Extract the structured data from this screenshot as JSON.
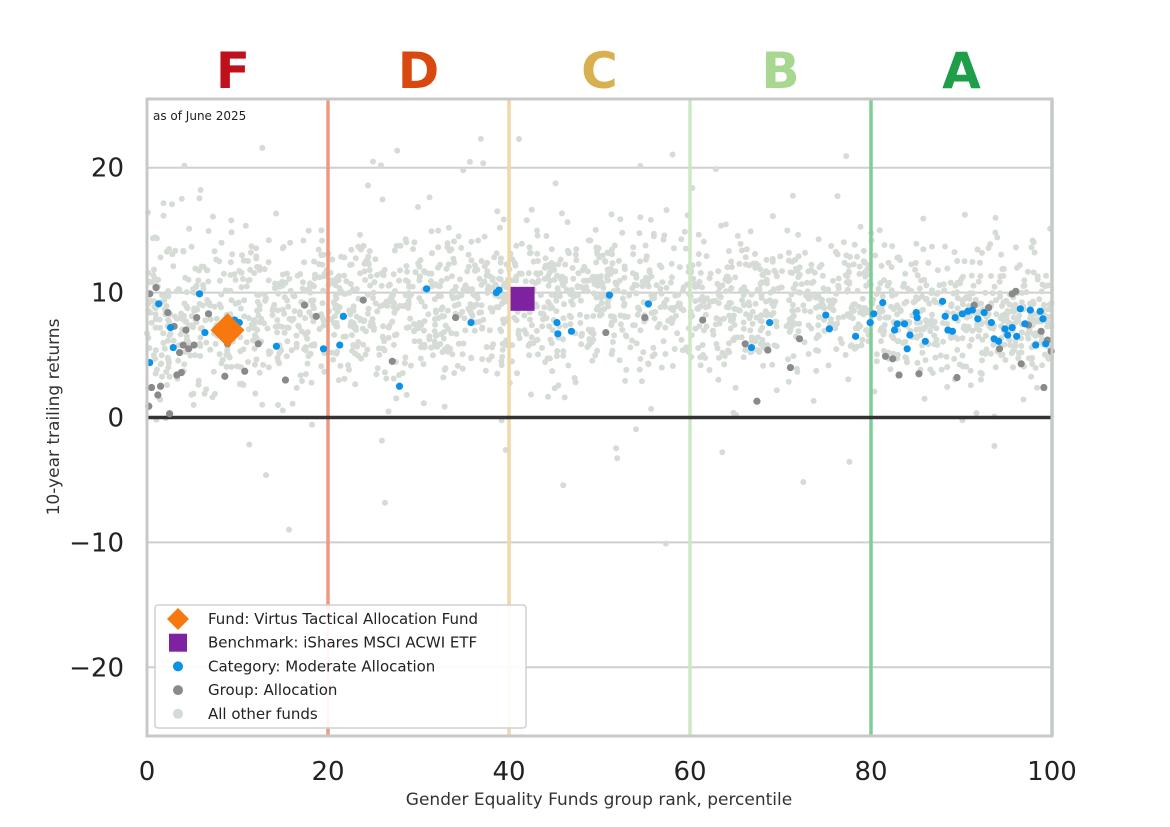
{
  "chart_data": {
    "type": "scatter",
    "note": "as of June 2025",
    "xlabel": "Gender Equality Funds group rank, percentile",
    "ylabel": "10-year trailing returns",
    "xlim": [
      0,
      100
    ],
    "ylim": [
      -25.5,
      25.5
    ],
    "x_ticks": [
      0,
      20,
      40,
      60,
      80,
      100
    ],
    "x_tick_labels": [
      "0",
      "20",
      "40",
      "60",
      "80",
      "100"
    ],
    "y_ticks": [
      -20,
      -10,
      0,
      10,
      20
    ],
    "y_tick_labels": [
      "−20",
      "−10",
      "0",
      "10",
      "20"
    ],
    "grid": "horizontal",
    "zero_line": 0,
    "grades": [
      {
        "label": "F",
        "center": 9.5,
        "color": "#c0101c"
      },
      {
        "label": "D",
        "center": 30,
        "color": "#d9480f"
      },
      {
        "label": "C",
        "center": 50,
        "color": "#d8b050"
      },
      {
        "label": "B",
        "center": 70,
        "color": "#a8d890"
      },
      {
        "label": "A",
        "center": 90,
        "color": "#1f9e4a"
      }
    ],
    "grade_boundaries": [
      {
        "x": 20,
        "color": "#ee9a80"
      },
      {
        "x": 40,
        "color": "#f0d8a8"
      },
      {
        "x": 60,
        "color": "#cde8c4"
      },
      {
        "x": 80,
        "color": "#80cc98"
      },
      {
        "x": 100,
        "color": "#a8dcb8"
      }
    ],
    "legend_position": "bottom-left",
    "series": [
      {
        "name": "Fund: Virtus Tactical Allocation Fund",
        "marker": "diamond",
        "color": "#f7780f",
        "points": [
          [
            8.9,
            7.0
          ]
        ]
      },
      {
        "name": "Benchmark: iShares MSCI ACWI ETF",
        "marker": "square",
        "color": "#7f22a2",
        "points": [
          [
            41.5,
            9.5
          ]
        ]
      },
      {
        "name": "Category: Moderate Allocation",
        "marker": "circle",
        "color": "#0a91e8",
        "points": [
          [
            0.3,
            4.4
          ],
          [
            1.3,
            9.1
          ],
          [
            2.6,
            7.2
          ],
          [
            2.9,
            5.6
          ],
          [
            5.8,
            9.9
          ],
          [
            6.4,
            6.8
          ],
          [
            9.7,
            7.8
          ],
          [
            10.2,
            7.6
          ],
          [
            14.3,
            5.7
          ],
          [
            19.5,
            5.5
          ],
          [
            21.3,
            5.8
          ],
          [
            21.7,
            8.1
          ],
          [
            27.9,
            2.5
          ],
          [
            30.9,
            10.3
          ],
          [
            35.8,
            7.6
          ],
          [
            38.6,
            10.0
          ],
          [
            38.9,
            10.2
          ],
          [
            45.4,
            6.7
          ],
          [
            45.3,
            7.6
          ],
          [
            46.9,
            6.9
          ],
          [
            51.1,
            9.8
          ],
          [
            55.4,
            9.1
          ],
          [
            66.8,
            5.6
          ],
          [
            68.8,
            7.6
          ],
          [
            75.0,
            8.2
          ],
          [
            75.4,
            7.1
          ],
          [
            78.3,
            6.5
          ],
          [
            79.9,
            7.6
          ],
          [
            80.3,
            8.3
          ],
          [
            81.3,
            9.2
          ],
          [
            82.6,
            7.0
          ],
          [
            82.9,
            7.5
          ],
          [
            83.7,
            7.5
          ],
          [
            84.0,
            5.5
          ],
          [
            84.3,
            6.6
          ],
          [
            85.0,
            8.4
          ],
          [
            85.1,
            8.0
          ],
          [
            86.0,
            6.1
          ],
          [
            87.9,
            9.3
          ],
          [
            88.2,
            8.1
          ],
          [
            88.5,
            7.0
          ],
          [
            89.0,
            6.9
          ],
          [
            89.3,
            8.0
          ],
          [
            90.1,
            8.3
          ],
          [
            90.7,
            8.5
          ],
          [
            91.2,
            8.6
          ],
          [
            91.8,
            7.9
          ],
          [
            92.5,
            8.4
          ],
          [
            93.3,
            7.6
          ],
          [
            93.6,
            6.3
          ],
          [
            94.1,
            6.1
          ],
          [
            94.8,
            7.1
          ],
          [
            95.1,
            6.6
          ],
          [
            95.6,
            7.2
          ],
          [
            96.1,
            6.5
          ],
          [
            96.5,
            8.7
          ],
          [
            97.0,
            7.5
          ],
          [
            97.6,
            8.6
          ],
          [
            98.2,
            5.8
          ],
          [
            98.7,
            8.5
          ],
          [
            99.0,
            7.9
          ],
          [
            99.3,
            5.9
          ]
        ]
      },
      {
        "name": "Group: Allocation",
        "marker": "circle",
        "color": "#8a8a8a",
        "points": [
          [
            0.2,
            0.9
          ],
          [
            0.3,
            9.9
          ],
          [
            0.5,
            2.4
          ],
          [
            1.0,
            10.4
          ],
          [
            1.2,
            1.8
          ],
          [
            1.5,
            2.5
          ],
          [
            2.3,
            8.4
          ],
          [
            2.5,
            0.3
          ],
          [
            3.0,
            7.3
          ],
          [
            3.3,
            3.4
          ],
          [
            3.6,
            5.2
          ],
          [
            3.8,
            3.6
          ],
          [
            4.0,
            5.8
          ],
          [
            4.3,
            7.0
          ],
          [
            4.6,
            5.5
          ],
          [
            5.2,
            5.8
          ],
          [
            5.5,
            8.0
          ],
          [
            6.8,
            8.3
          ],
          [
            8.6,
            3.3
          ],
          [
            8.9,
            5.9
          ],
          [
            10.8,
            3.7
          ],
          [
            12.3,
            5.9
          ],
          [
            15.3,
            3.0
          ],
          [
            17.4,
            9.0
          ],
          [
            18.7,
            8.1
          ],
          [
            23.9,
            9.4
          ],
          [
            27.1,
            4.5
          ],
          [
            34.1,
            8.0
          ],
          [
            50.7,
            6.8
          ],
          [
            55.0,
            8.0
          ],
          [
            61.4,
            7.8
          ],
          [
            66.1,
            5.9
          ],
          [
            67.4,
            1.3
          ],
          [
            68.6,
            5.4
          ],
          [
            71.1,
            4.0
          ],
          [
            72.1,
            6.3
          ],
          [
            81.6,
            4.9
          ],
          [
            82.4,
            4.7
          ],
          [
            83.1,
            3.4
          ],
          [
            85.3,
            3.5
          ],
          [
            89.5,
            3.2
          ],
          [
            91.4,
            9.0
          ],
          [
            93.0,
            8.8
          ],
          [
            94.2,
            5.5
          ],
          [
            95.6,
            9.9
          ],
          [
            96.0,
            10.1
          ],
          [
            96.6,
            4.3
          ],
          [
            97.4,
            7.4
          ],
          [
            98.8,
            6.9
          ],
          [
            99.1,
            2.4
          ],
          [
            99.5,
            6.2
          ],
          [
            99.9,
            5.3
          ]
        ]
      },
      {
        "name": "All other funds",
        "marker": "circle",
        "color": "#d5dbd5",
        "generated": true
      }
    ]
  }
}
